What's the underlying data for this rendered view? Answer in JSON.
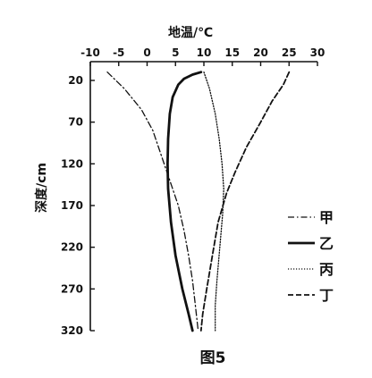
{
  "chart_data": {
    "type": "line",
    "title": "",
    "caption": "图5",
    "xlabel": "地温/℃",
    "ylabel": "深度/cm",
    "xlim": [
      -10,
      30
    ],
    "ylim": [
      20,
      320
    ],
    "y_inverted": true,
    "x_ticks": [
      "-10",
      "-5",
      "0",
      "5",
      "10",
      "15",
      "20",
      "25",
      "30"
    ],
    "y_ticks": [
      "20",
      "70",
      "120",
      "170",
      "220",
      "270",
      "320"
    ],
    "x_axis_position": "top",
    "grid": false,
    "legend_position": "right",
    "series": [
      {
        "name": "甲",
        "style": "dash-dot",
        "points": [
          [
            -7,
            10
          ],
          [
            -4,
            30
          ],
          [
            -1,
            55
          ],
          [
            1,
            80
          ],
          [
            2.5,
            110
          ],
          [
            4,
            140
          ],
          [
            5.5,
            170
          ],
          [
            6.5,
            200
          ],
          [
            7.3,
            230
          ],
          [
            8,
            260
          ],
          [
            8.5,
            290
          ],
          [
            9,
            320
          ]
        ]
      },
      {
        "name": "乙",
        "style": "solid",
        "points": [
          [
            9.5,
            10
          ],
          [
            8,
            13
          ],
          [
            6.5,
            18
          ],
          [
            5.5,
            25
          ],
          [
            4.5,
            40
          ],
          [
            4,
            60
          ],
          [
            3.7,
            90
          ],
          [
            3.6,
            120
          ],
          [
            3.7,
            150
          ],
          [
            4.2,
            190
          ],
          [
            5,
            230
          ],
          [
            6.2,
            270
          ],
          [
            7.3,
            300
          ],
          [
            8,
            320
          ]
        ]
      },
      {
        "name": "丙",
        "style": "dotted",
        "points": [
          [
            10,
            10
          ],
          [
            11,
            30
          ],
          [
            12,
            60
          ],
          [
            12.7,
            90
          ],
          [
            13.2,
            120
          ],
          [
            13.5,
            150
          ],
          [
            13.3,
            180
          ],
          [
            12.8,
            220
          ],
          [
            12.3,
            260
          ],
          [
            12,
            290
          ],
          [
            12,
            320
          ]
        ]
      },
      {
        "name": "丁",
        "style": "dashed",
        "points": [
          [
            25,
            10
          ],
          [
            24,
            25
          ],
          [
            22,
            45
          ],
          [
            20,
            70
          ],
          [
            17.5,
            100
          ],
          [
            15.5,
            130
          ],
          [
            14,
            155
          ],
          [
            12.5,
            190
          ],
          [
            11.5,
            230
          ],
          [
            10.5,
            270
          ],
          [
            9.8,
            300
          ],
          [
            9.5,
            320
          ]
        ]
      }
    ]
  }
}
